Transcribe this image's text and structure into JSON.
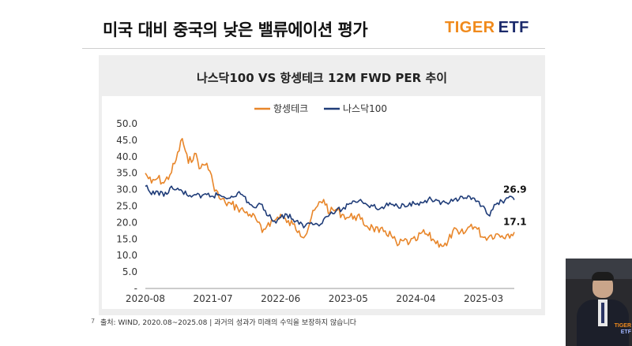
{
  "slide": {
    "title": "미국 대비 중국의 낮은 밸류에이션 평가",
    "logo_primary": "TIGER",
    "logo_secondary": "ETF",
    "page_number": "7",
    "source_note": "출처: WIND, 2020.08~2025.08  |  과거의 성과가 미래의 수익을 보장하지 않습니다"
  },
  "chart_data": {
    "type": "line",
    "title": "나스닥100 VS 항셍테크 12M FWD PER 추이",
    "xlabel": "",
    "ylabel": "",
    "x_tick_labels": [
      "2020-08",
      "2021-07",
      "2022-06",
      "2023-05",
      "2024-04",
      "2025-03"
    ],
    "y_ticks": [
      "50.0",
      "45.0",
      "40.0",
      "35.0",
      "30.0",
      "25.0",
      "20.0",
      "15.0",
      "10.0",
      "5.0",
      "-"
    ],
    "ylim": [
      0,
      50
    ],
    "x_range": [
      "2020-08",
      "2025-08"
    ],
    "grid": false,
    "legend_position": "top-center",
    "series": [
      {
        "name": "항셍테크",
        "color": "#e8862a",
        "last_value_label": "17.1",
        "points": [
          [
            "2020-08",
            35.0
          ],
          [
            "2020-09",
            32.0
          ],
          [
            "2020-10",
            33.5
          ],
          [
            "2020-11",
            32.0
          ],
          [
            "2020-12",
            34.5
          ],
          [
            "2021-01",
            39.0
          ],
          [
            "2021-02",
            45.5
          ],
          [
            "2021-03",
            38.0
          ],
          [
            "2021-04",
            41.0
          ],
          [
            "2021-05",
            36.5
          ],
          [
            "2021-06",
            38.0
          ],
          [
            "2021-07",
            32.0
          ],
          [
            "2021-08",
            27.5
          ],
          [
            "2021-09",
            26.0
          ],
          [
            "2021-10",
            25.5
          ],
          [
            "2021-11",
            24.5
          ],
          [
            "2021-12",
            23.5
          ],
          [
            "2022-01",
            22.5
          ],
          [
            "2022-02",
            21.0
          ],
          [
            "2022-03",
            17.0
          ],
          [
            "2022-04",
            20.0
          ],
          [
            "2022-05",
            20.5
          ],
          [
            "2022-06",
            22.5
          ],
          [
            "2022-07",
            20.0
          ],
          [
            "2022-08",
            19.5
          ],
          [
            "2022-09",
            17.5
          ],
          [
            "2022-10",
            16.0
          ],
          [
            "2022-11",
            21.5
          ],
          [
            "2022-12",
            25.0
          ],
          [
            "2023-01",
            27.0
          ],
          [
            "2023-02",
            23.0
          ],
          [
            "2023-03",
            24.0
          ],
          [
            "2023-04",
            22.5
          ],
          [
            "2023-05",
            21.5
          ],
          [
            "2023-06",
            22.0
          ],
          [
            "2023-07",
            21.0
          ],
          [
            "2023-08",
            19.0
          ],
          [
            "2023-09",
            18.5
          ],
          [
            "2023-10",
            17.0
          ],
          [
            "2023-11",
            17.5
          ],
          [
            "2023-12",
            16.0
          ],
          [
            "2024-01",
            13.0
          ],
          [
            "2024-02",
            14.5
          ],
          [
            "2024-03",
            14.0
          ],
          [
            "2024-04",
            14.5
          ],
          [
            "2024-05",
            17.0
          ],
          [
            "2024-06",
            16.0
          ],
          [
            "2024-07",
            14.5
          ],
          [
            "2024-08",
            13.5
          ],
          [
            "2024-09",
            13.0
          ],
          [
            "2024-10",
            17.5
          ],
          [
            "2024-11",
            16.5
          ],
          [
            "2024-12",
            17.0
          ],
          [
            "2025-01",
            19.5
          ],
          [
            "2025-02",
            18.0
          ],
          [
            "2025-03",
            15.5
          ],
          [
            "2025-04",
            16.0
          ],
          [
            "2025-05",
            16.5
          ],
          [
            "2025-06",
            16.0
          ],
          [
            "2025-07",
            16.5
          ],
          [
            "2025-08",
            17.1
          ]
        ]
      },
      {
        "name": "나스닥100",
        "color": "#1f3c78",
        "last_value_label": "26.9",
        "points": [
          [
            "2020-08",
            31.0
          ],
          [
            "2020-09",
            28.5
          ],
          [
            "2020-10",
            29.5
          ],
          [
            "2020-11",
            28.0
          ],
          [
            "2020-12",
            30.5
          ],
          [
            "2021-01",
            30.0
          ],
          [
            "2021-02",
            29.5
          ],
          [
            "2021-03",
            28.0
          ],
          [
            "2021-04",
            28.5
          ],
          [
            "2021-05",
            27.5
          ],
          [
            "2021-06",
            28.5
          ],
          [
            "2021-07",
            28.0
          ],
          [
            "2021-08",
            28.5
          ],
          [
            "2021-09",
            27.5
          ],
          [
            "2021-10",
            28.0
          ],
          [
            "2021-11",
            29.0
          ],
          [
            "2021-12",
            28.0
          ],
          [
            "2022-01",
            25.5
          ],
          [
            "2022-02",
            24.5
          ],
          [
            "2022-03",
            25.5
          ],
          [
            "2022-04",
            22.0
          ],
          [
            "2022-05",
            20.5
          ],
          [
            "2022-06",
            21.5
          ],
          [
            "2022-07",
            22.5
          ],
          [
            "2022-08",
            21.0
          ],
          [
            "2022-09",
            19.5
          ],
          [
            "2022-10",
            19.0
          ],
          [
            "2022-11",
            20.0
          ],
          [
            "2022-12",
            19.5
          ],
          [
            "2023-01",
            21.0
          ],
          [
            "2023-02",
            22.5
          ],
          [
            "2023-03",
            23.5
          ],
          [
            "2023-04",
            24.0
          ],
          [
            "2023-05",
            25.5
          ],
          [
            "2023-06",
            26.5
          ],
          [
            "2023-07",
            27.0
          ],
          [
            "2023-08",
            25.5
          ],
          [
            "2023-09",
            25.0
          ],
          [
            "2023-10",
            24.0
          ],
          [
            "2023-11",
            25.0
          ],
          [
            "2023-12",
            25.5
          ],
          [
            "2024-01",
            25.0
          ],
          [
            "2024-02",
            25.5
          ],
          [
            "2024-03",
            26.0
          ],
          [
            "2024-04",
            25.5
          ],
          [
            "2024-05",
            26.0
          ],
          [
            "2024-06",
            27.0
          ],
          [
            "2024-07",
            26.5
          ],
          [
            "2024-08",
            25.5
          ],
          [
            "2024-09",
            26.0
          ],
          [
            "2024-10",
            26.5
          ],
          [
            "2024-11",
            27.0
          ],
          [
            "2024-12",
            27.5
          ],
          [
            "2025-01",
            27.0
          ],
          [
            "2025-02",
            26.5
          ],
          [
            "2025-03",
            25.0
          ],
          [
            "2025-04",
            22.0
          ],
          [
            "2025-05",
            25.5
          ],
          [
            "2025-06",
            26.5
          ],
          [
            "2025-07",
            27.5
          ],
          [
            "2025-08",
            26.9
          ]
        ]
      }
    ]
  }
}
